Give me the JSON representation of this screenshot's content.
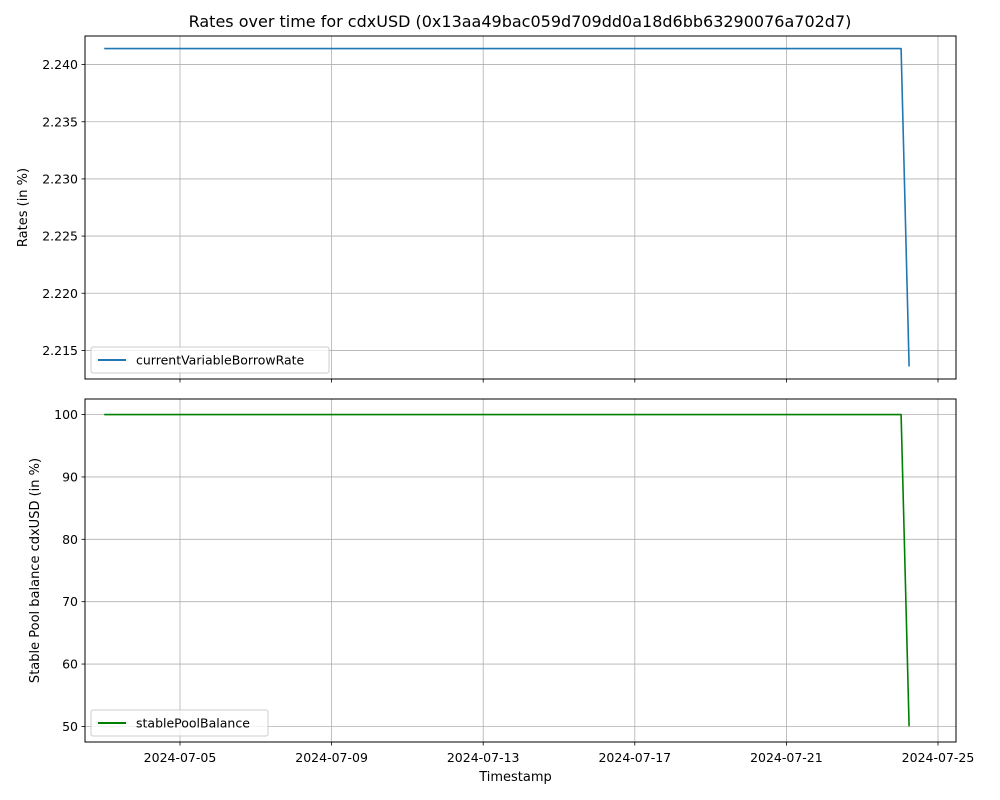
{
  "title": "Rates over time for cdxUSD (0x13aa49bac059d709dd0a18d6bb63290076a702d7)",
  "xlabel": "Timestamp",
  "x_ticks": [
    "2024-07-05",
    "2024-07-09",
    "2024-07-13",
    "2024-07-17",
    "2024-07-21",
    "2024-07-25"
  ],
  "chart_data": [
    {
      "type": "line",
      "title": "Rates over time for cdxUSD (0x13aa49bac059d709dd0a18d6bb63290076a702d7)",
      "xlabel": "",
      "ylabel": "Rates (in %)",
      "xlim": [
        "2024-07-02",
        "2024-07-25"
      ],
      "ylim": [
        2.2125,
        2.2425
      ],
      "y_ticks": [
        "2.215",
        "2.220",
        "2.225",
        "2.230",
        "2.235",
        "2.240"
      ],
      "grid": true,
      "legend_position": "bottom-left",
      "series": [
        {
          "name": "currentVariableBorrowRate",
          "color": "#1f77b4",
          "x": [
            "2024-07-03",
            "2024-07-24",
            "2024-07-24"
          ],
          "y": [
            2.2414,
            2.2414,
            2.2136
          ]
        }
      ]
    },
    {
      "type": "line",
      "title": "",
      "xlabel": "Timestamp",
      "ylabel": "Stable Pool balance cdxUSD (in %)",
      "xlim": [
        "2024-07-02",
        "2024-07-25"
      ],
      "ylim": [
        47.5,
        102.5
      ],
      "y_ticks": [
        "50",
        "60",
        "70",
        "80",
        "90",
        "100"
      ],
      "grid": true,
      "legend_position": "bottom-left",
      "series": [
        {
          "name": "stablePoolBalance",
          "color": "#008000",
          "x": [
            "2024-07-03",
            "2024-07-24",
            "2024-07-24"
          ],
          "y": [
            100,
            100,
            50
          ]
        }
      ]
    }
  ]
}
